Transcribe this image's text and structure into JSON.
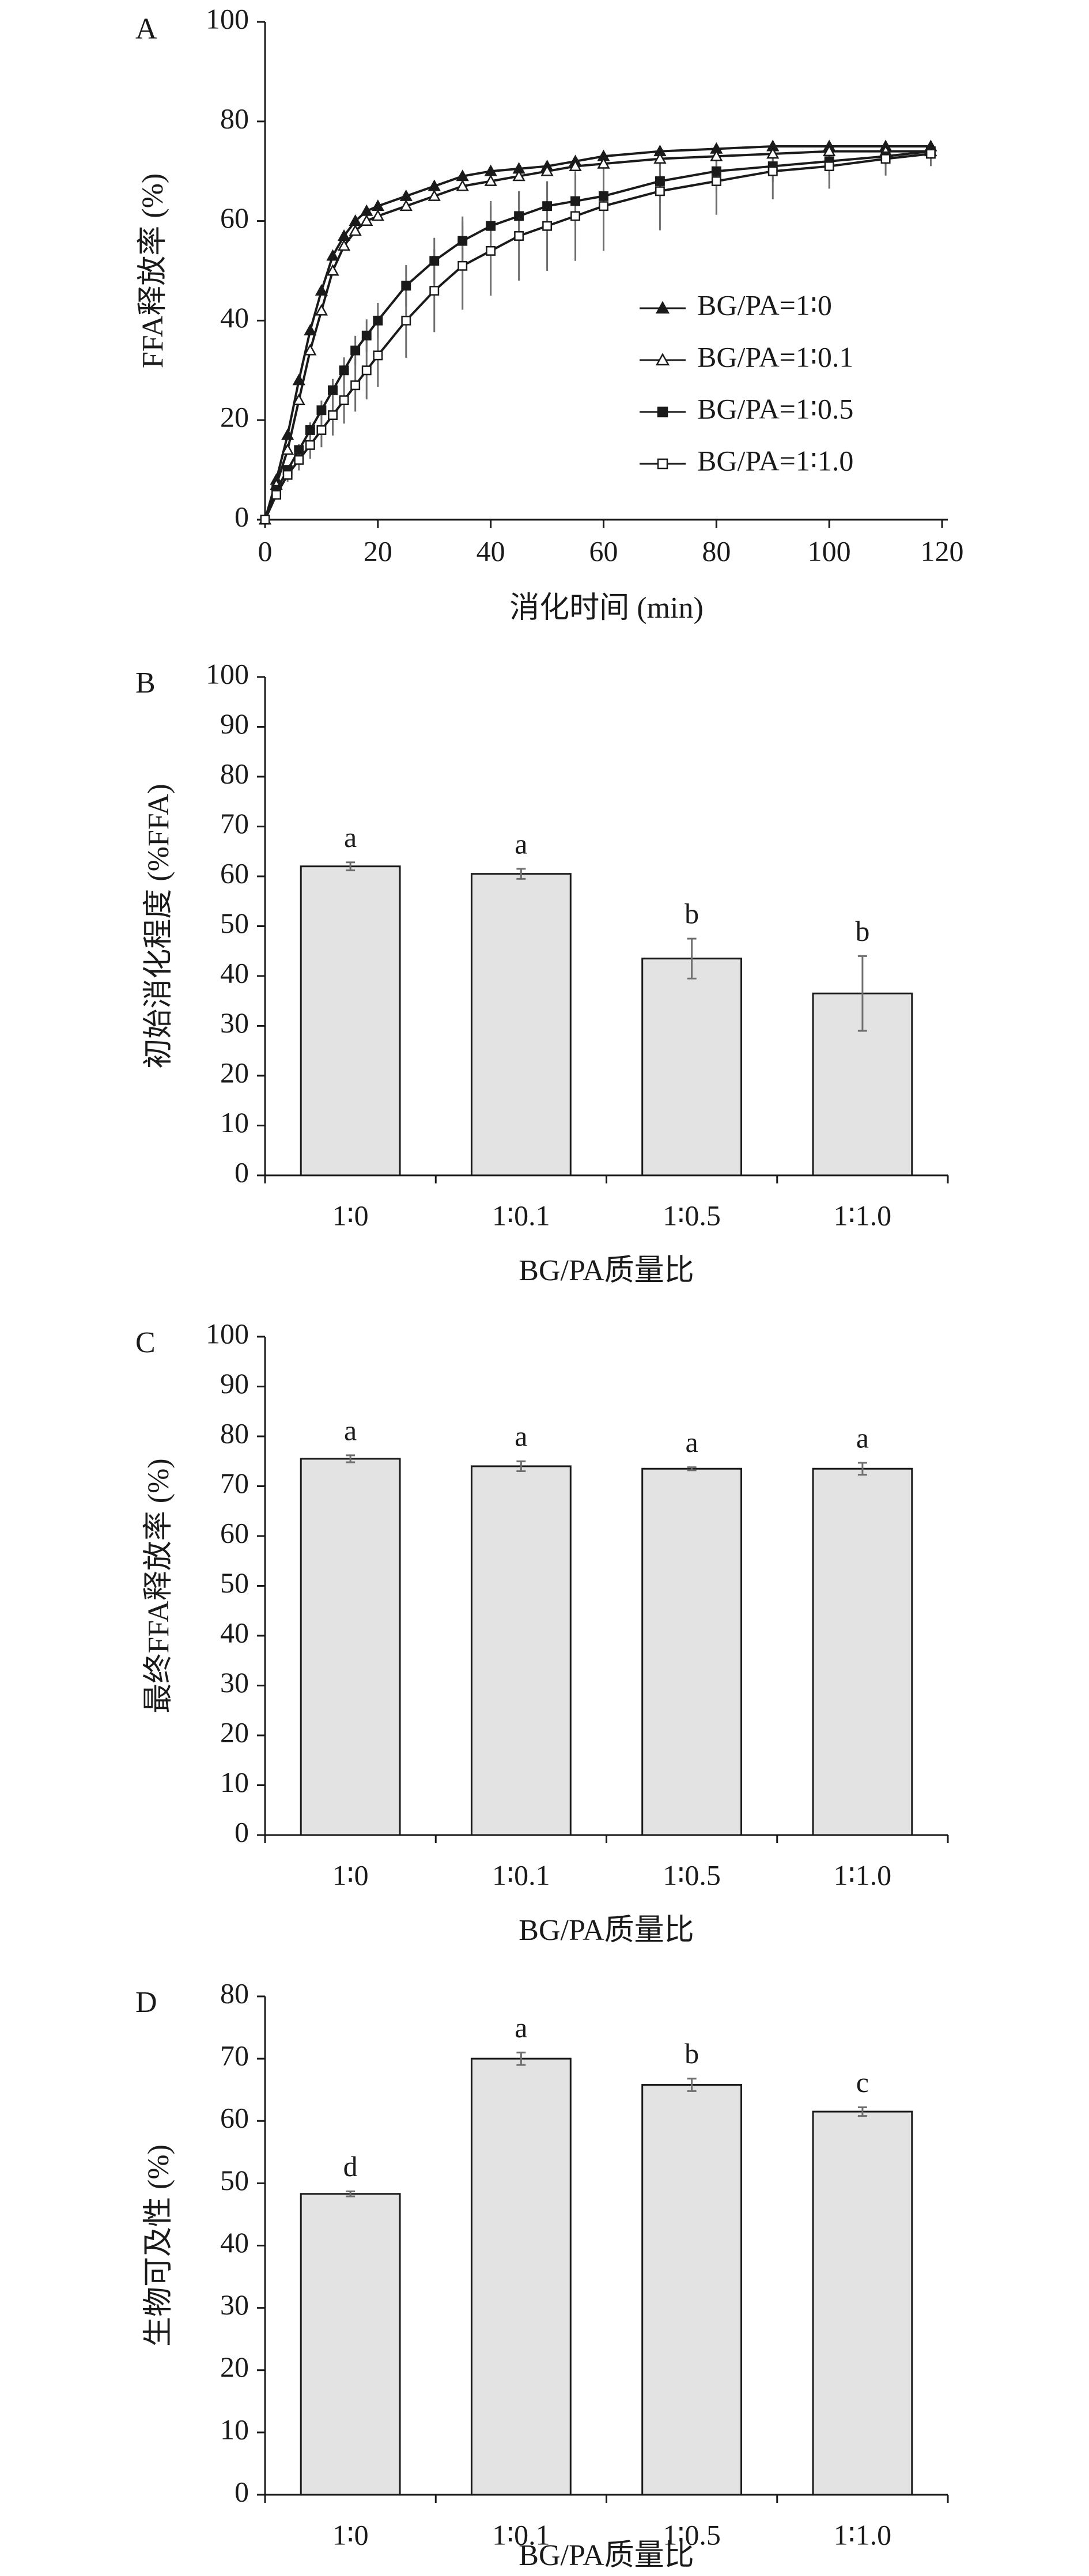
{
  "figure": {
    "panels": [
      {
        "letter": "A",
        "ylabel": "FFA释放率 (%)",
        "xlabel": "消化时间 (min)"
      },
      {
        "letter": "B",
        "ylabel": "初始消化程度 (%FFA)",
        "xlabel": "BG/PA质量比"
      },
      {
        "letter": "C",
        "ylabel": "最终FFA释放率 (%)",
        "xlabel": "BG/PA质量比"
      },
      {
        "letter": "D",
        "ylabel": "生物可及性 (%)",
        "xlabel": "BG/PA质量比"
      }
    ]
  },
  "colors": {
    "bar_fill": "#e3e3e3",
    "line": "#1a1a1a",
    "error_bar": "#6e6e6e"
  },
  "chart_data": [
    {
      "type": "line",
      "title": "",
      "panel": "A",
      "xlabel": "消化时间 (min)",
      "ylabel": "FFA释放率 (%)",
      "xlim": [
        0,
        120
      ],
      "ylim": [
        0,
        100
      ],
      "xticks": [
        "0",
        "20",
        "40",
        "60",
        "80",
        "100",
        "120"
      ],
      "yticks": [
        "0",
        "20",
        "40",
        "60",
        "80",
        "100"
      ],
      "legend_position": "center-right",
      "series": [
        {
          "name": "BG/PA=1∶0",
          "marker": "filled-triangle",
          "x": [
            0,
            2,
            4,
            6,
            8,
            10,
            12,
            14,
            16,
            18,
            20,
            25,
            30,
            35,
            40,
            45,
            50,
            55,
            60,
            70,
            80,
            90,
            100,
            110,
            118
          ],
          "y": [
            0,
            8,
            17,
            28,
            38,
            46,
            53,
            57,
            60,
            62,
            63,
            65,
            67,
            69,
            70,
            70.5,
            71,
            72,
            73,
            74,
            74.5,
            75,
            75,
            75,
            75
          ]
        },
        {
          "name": "BG/PA=1∶0.1",
          "marker": "open-triangle",
          "x": [
            0,
            2,
            4,
            6,
            8,
            10,
            12,
            14,
            16,
            18,
            20,
            25,
            30,
            35,
            40,
            45,
            50,
            55,
            60,
            70,
            80,
            90,
            100,
            110,
            118
          ],
          "y": [
            0,
            7,
            14,
            24,
            34,
            42,
            50,
            55,
            58,
            60,
            61,
            63,
            65,
            67,
            68,
            69,
            70,
            71,
            71.5,
            72.5,
            73,
            73.5,
            74,
            74,
            74
          ]
        },
        {
          "name": "BG/PA=1∶0.5",
          "marker": "filled-square",
          "x": [
            0,
            2,
            4,
            6,
            8,
            10,
            12,
            14,
            16,
            18,
            20,
            25,
            30,
            35,
            40,
            45,
            50,
            55,
            60,
            70,
            80,
            90,
            100,
            110,
            118
          ],
          "y": [
            0,
            6,
            10,
            14,
            18,
            22,
            26,
            30,
            34,
            37,
            40,
            47,
            52,
            56,
            59,
            61,
            63,
            64,
            65,
            68,
            70,
            71,
            72,
            73,
            74
          ]
        },
        {
          "name": "BG/PA=1∶1.0",
          "marker": "open-square",
          "x": [
            0,
            2,
            4,
            6,
            8,
            10,
            12,
            14,
            16,
            18,
            20,
            25,
            30,
            35,
            40,
            45,
            50,
            55,
            60,
            70,
            80,
            90,
            100,
            110,
            118
          ],
          "y": [
            0,
            5,
            9,
            12,
            15,
            18,
            21,
            24,
            27,
            30,
            33,
            40,
            46,
            51,
            54,
            57,
            59,
            61,
            63,
            66,
            68,
            70,
            71,
            72.5,
            73.5
          ]
        }
      ]
    },
    {
      "type": "bar",
      "title": "",
      "panel": "B",
      "xlabel": "BG/PA质量比",
      "ylabel": "初始消化程度 (%FFA)",
      "ylim": [
        0,
        100
      ],
      "yticks": [
        "0",
        "10",
        "20",
        "30",
        "40",
        "50",
        "60",
        "70",
        "80",
        "90",
        "100"
      ],
      "categories": [
        "1∶0",
        "1∶0.1",
        "1∶0.5",
        "1∶1.0"
      ],
      "values": [
        62,
        60.5,
        43.5,
        36.5
      ],
      "errors": [
        0.8,
        1.0,
        4.0,
        7.5
      ],
      "letters": [
        "a",
        "a",
        "b",
        "b"
      ]
    },
    {
      "type": "bar",
      "title": "",
      "panel": "C",
      "xlabel": "BG/PA质量比",
      "ylabel": "最终FFA释放率 (%)",
      "ylim": [
        0,
        100
      ],
      "yticks": [
        "0",
        "10",
        "20",
        "30",
        "40",
        "50",
        "60",
        "70",
        "80",
        "90",
        "100"
      ],
      "categories": [
        "1∶0",
        "1∶0.1",
        "1∶0.5",
        "1∶1.0"
      ],
      "values": [
        75.5,
        74,
        73.5,
        73.5
      ],
      "errors": [
        0.7,
        1.0,
        0.3,
        1.2
      ],
      "letters": [
        "a",
        "a",
        "a",
        "a"
      ]
    },
    {
      "type": "bar",
      "title": "",
      "panel": "D",
      "xlabel": "BG/PA质量比",
      "ylabel": "生物可及性 (%)",
      "ylim": [
        0,
        80
      ],
      "yticks": [
        "0",
        "10",
        "20",
        "30",
        "40",
        "50",
        "60",
        "70",
        "80"
      ],
      "categories": [
        "1∶0",
        "1∶0.1",
        "1∶0.5",
        "1∶1.0"
      ],
      "values": [
        48.3,
        70,
        65.8,
        61.5
      ],
      "errors": [
        0.4,
        1.0,
        1.0,
        0.7
      ],
      "letters": [
        "d",
        "a",
        "b",
        "c"
      ]
    }
  ]
}
